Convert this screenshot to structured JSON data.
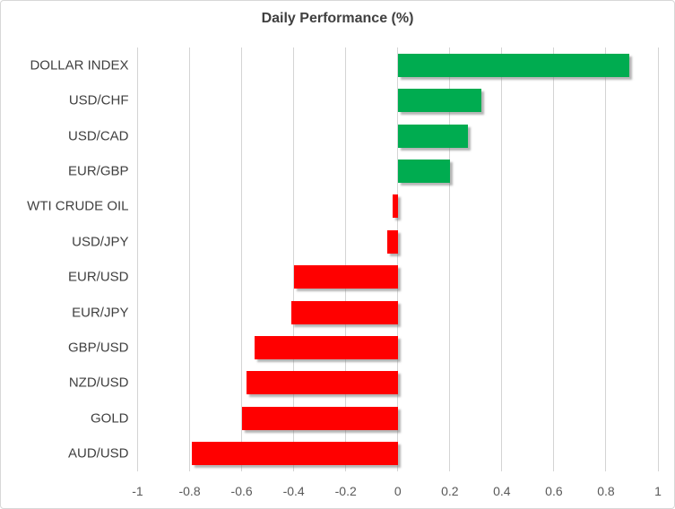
{
  "chart_data": {
    "type": "bar",
    "orientation": "horizontal",
    "title": "Daily Performance (%)",
    "categories": [
      "DOLLAR INDEX",
      "USD/CHF",
      "USD/CAD",
      "EUR/GBP",
      "WTI CRUDE OIL",
      "USD/JPY",
      "EUR/USD",
      "EUR/JPY",
      "GBP/USD",
      "NZD/USD",
      "GOLD",
      "AUD/USD"
    ],
    "values": [
      0.89,
      0.32,
      0.27,
      0.2,
      -0.02,
      -0.04,
      -0.4,
      -0.41,
      -0.55,
      -0.58,
      -0.6,
      -0.79
    ],
    "xlabel": "",
    "ylabel": "",
    "xlim": [
      -1,
      1
    ],
    "x_tick_values": [
      -1,
      -0.8,
      -0.6,
      -0.4,
      -0.2,
      0,
      0.2,
      0.4,
      0.6,
      0.8,
      1
    ],
    "x_tick_labels": [
      "-1",
      "-0.8",
      "-0.6",
      "-0.4",
      "-0.2",
      "0",
      "0.2",
      "0.4",
      "0.6",
      "0.8",
      "1"
    ],
    "grid": "vertical",
    "legend": "none",
    "positive_color": "#00ac50",
    "negative_color": "#ff0000",
    "gridline_color": "#d4d4d4",
    "title_color": "#404040",
    "label_color": "#404040",
    "tick_color": "#595959"
  }
}
